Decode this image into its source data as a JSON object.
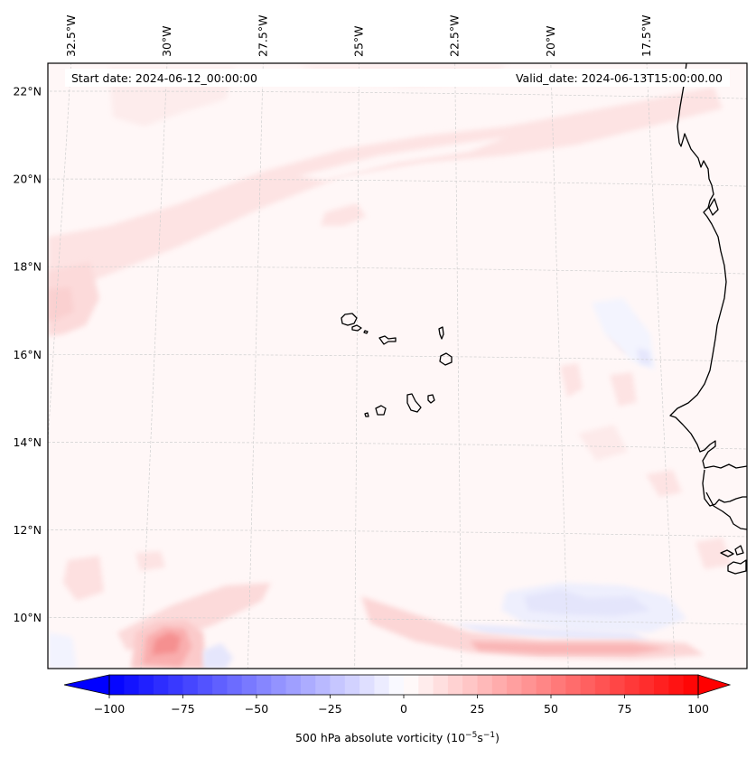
{
  "chart_data": {
    "type": "heatmap",
    "subtype": "filled-contour-map",
    "title": "",
    "projection": "map",
    "region": "Eastern tropical Atlantic / Cabo Verde / West African coast",
    "header": {
      "start_date": "Start date: 2024-06-12_00:00:00",
      "valid_date": "Valid_date: 2024-06-13T15:00:00.00"
    },
    "lon_ticks": [
      {
        "label": "32.5°W",
        "value": -32.5
      },
      {
        "label": "30°W",
        "value": -30
      },
      {
        "label": "27.5°W",
        "value": -27.5
      },
      {
        "label": "25°W",
        "value": -25
      },
      {
        "label": "22.5°W",
        "value": -22.5
      },
      {
        "label": "20°W",
        "value": -20
      },
      {
        "label": "17.5°W",
        "value": -17.5
      }
    ],
    "lat_ticks": [
      {
        "label": "22°N",
        "value": 22
      },
      {
        "label": "20°N",
        "value": 20
      },
      {
        "label": "18°N",
        "value": 18
      },
      {
        "label": "16°N",
        "value": 16
      },
      {
        "label": "14°N",
        "value": 14
      },
      {
        "label": "12°N",
        "value": 12
      },
      {
        "label": "10°N",
        "value": 10
      }
    ],
    "lon_range": [
      -32.6,
      -15.4
    ],
    "lat_range": [
      8.9,
      22.7
    ],
    "grid": true,
    "colorbar": {
      "label_main": "500 hPa absolute vorticity (10",
      "label_exp1": "−5",
      "label_mid": "s",
      "label_exp2": "−1",
      "label_end": ")",
      "vmin": -100,
      "vmax": 100,
      "step": 5,
      "extend": "both",
      "colormap": "bwr",
      "ticks": [
        {
          "label": "−100",
          "value": -100
        },
        {
          "label": "−75",
          "value": -75
        },
        {
          "label": "−50",
          "value": -50
        },
        {
          "label": "−25",
          "value": -25
        },
        {
          "label": "0",
          "value": 0
        },
        {
          "label": "25",
          "value": 25
        },
        {
          "label": "50",
          "value": 50
        },
        {
          "label": "75",
          "value": 75
        },
        {
          "label": "100",
          "value": 100
        }
      ],
      "placement": "bottom"
    },
    "field_features": [
      {
        "name": "background",
        "value": 2,
        "desc": "near-zero positive vorticity over most of domain"
      },
      {
        "name": "sw-ne-band",
        "value": 8,
        "desc": "weak positive band from ~18N 32W to ~21N 17W"
      },
      {
        "name": "west-edge-patch",
        "value": 12,
        "desc": "positive patch near 17-18N 32W"
      },
      {
        "name": "sw-maximum",
        "value": 35,
        "desc": "positive maximum near 9.3N 29.5W"
      },
      {
        "name": "southern-streak",
        "value": 30,
        "desc": "positive elongated streak near 9.3N 24W-17W"
      },
      {
        "name": "southern-negative",
        "value": -10,
        "desc": "weak negative area near 10N 22W-18W"
      },
      {
        "name": "coastal-negative",
        "value": -12,
        "desc": "weak negative spots near 16N 17.5W"
      }
    ]
  }
}
